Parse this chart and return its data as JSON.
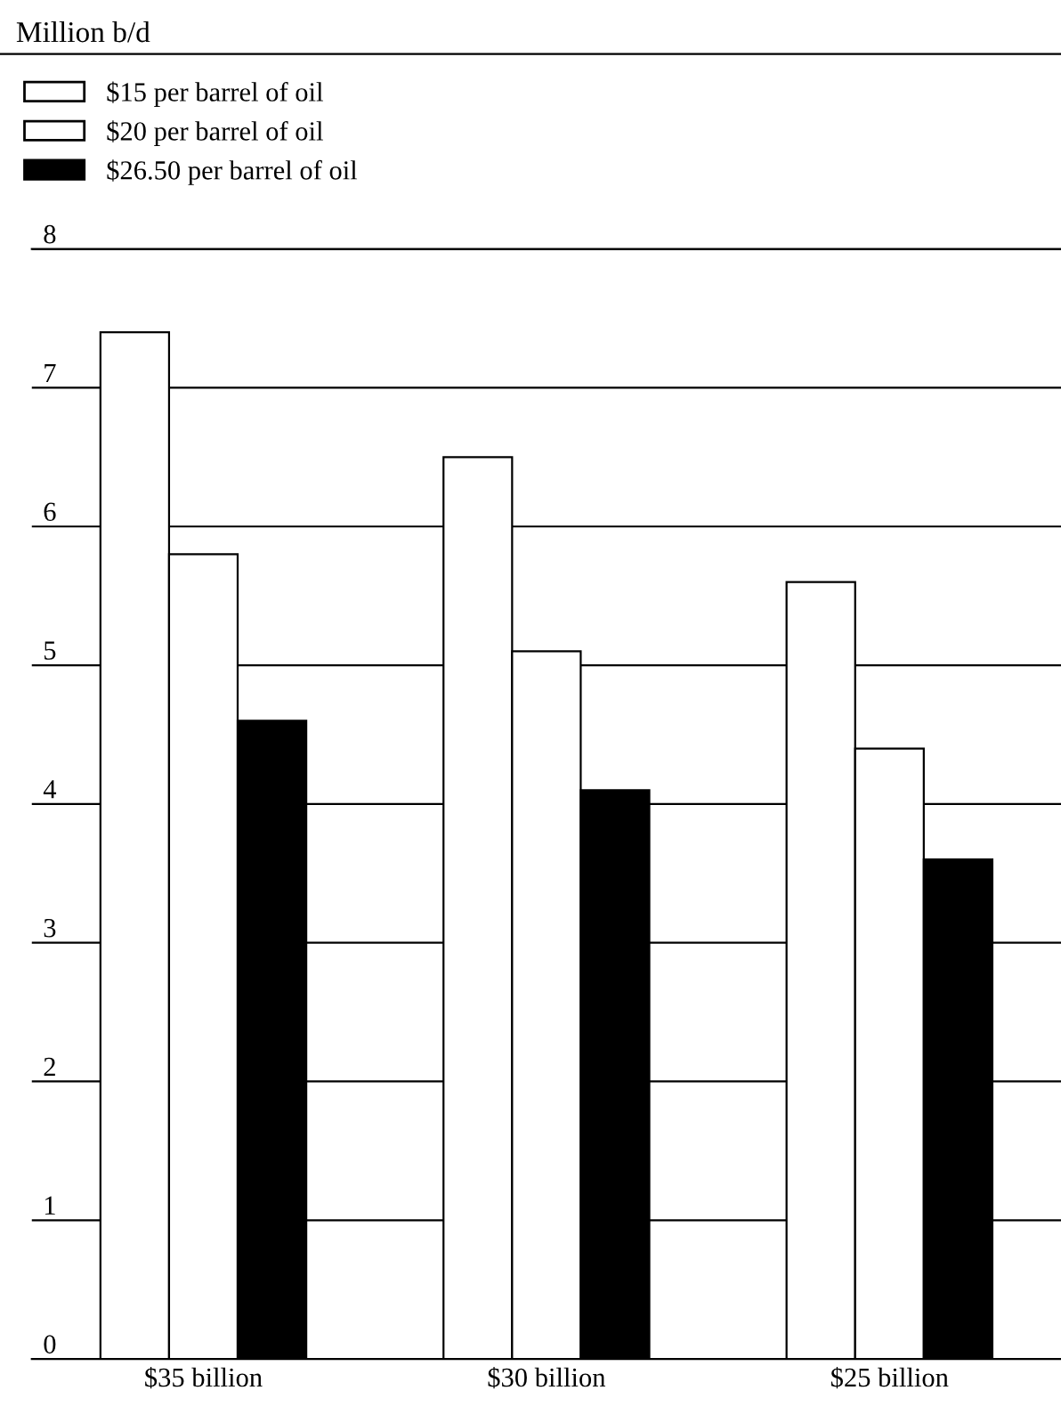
{
  "chart_data": {
    "type": "bar",
    "title": "Million b/d",
    "categories": [
      "$35 billion",
      "$30 billion",
      "$25 billion"
    ],
    "series": [
      {
        "name": "$15 per barrel of oil",
        "color": "#ffffff",
        "values": [
          7.4,
          6.5,
          5.6
        ]
      },
      {
        "name": "$20 per barrel of oil",
        "color": "#ffffff",
        "values": [
          5.8,
          5.1,
          4.4
        ]
      },
      {
        "name": "$26.50 per barrel of oil",
        "color": "#000000",
        "values": [
          4.6,
          4.1,
          3.6
        ]
      }
    ],
    "ylim": [
      0,
      8
    ],
    "yticks": [
      0,
      1,
      2,
      3,
      4,
      5,
      6,
      7,
      8
    ],
    "grid": "y",
    "legend": "top left"
  }
}
